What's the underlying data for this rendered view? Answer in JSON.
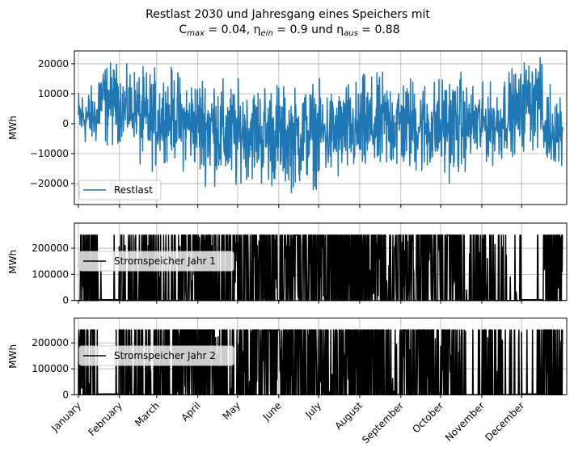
{
  "chart_data": {
    "type": "line",
    "title_line1": "Restlast 2030 und Jahresgang eines Speichers mit",
    "title_line2": {
      "c": "C",
      "c_sub": "max",
      "c_val": " = 0.04, ",
      "eta1": "η",
      "eta1_sub": "ein",
      "eta1_val": " = 0.9 und ",
      "eta2": "η",
      "eta2_sub": "aus",
      "eta2_val": " = 0.88"
    },
    "x_unit": "day of year",
    "xlim": [
      -3,
      368
    ],
    "months": [
      "January",
      "February",
      "March",
      "April",
      "May",
      "June",
      "July",
      "August",
      "September",
      "October",
      "November",
      "December"
    ],
    "month_start_days": [
      0,
      31,
      59,
      90,
      120,
      151,
      181,
      212,
      243,
      273,
      304,
      334
    ],
    "grid": true,
    "panels": [
      {
        "name": "Restlast",
        "legend": "Restlast",
        "legend_location": "lower-left",
        "ylabel": "MWh",
        "color": "#1f77b4",
        "ylim": [
          -27000,
          24300
        ],
        "yticks": [
          -20000,
          -10000,
          0,
          10000,
          20000
        ],
        "ytick_labels": [
          "−20000",
          "−10000",
          "0",
          "10000",
          "20000"
        ],
        "half_month_envelope": {
          "max": [
            13000,
            21000,
            20000,
            19000,
            19000,
            17000,
            19000,
            15000,
            14000,
            16000,
            13000,
            15000,
            13000,
            15000,
            17000,
            18000,
            17000,
            16000,
            18000,
            14000,
            14000,
            19000,
            22000,
            15000
          ],
          "min": [
            -8000,
            -9000,
            -6000,
            -16000,
            -13000,
            -16000,
            -21000,
            -25000,
            -20000,
            -22000,
            -23000,
            -22000,
            -21000,
            -20000,
            -20000,
            -18000,
            -18000,
            -19000,
            -20000,
            -16000,
            -14000,
            -11000,
            -10000,
            -14000
          ],
          "mean": [
            2000,
            9000,
            4000,
            1000,
            2000,
            0,
            -1000,
            -3000,
            -2000,
            -4000,
            -4000,
            -3000,
            -3000,
            -2000,
            -1000,
            0,
            0,
            -1000,
            0,
            0,
            0,
            3000,
            10000,
            -3000
          ]
        }
      },
      {
        "name": "Stromspeicher Jahr 1",
        "legend": "Stromspeicher Jahr 1",
        "legend_location": "center-left",
        "ylabel": "MWh",
        "color": "#000000",
        "ylim": [
          0,
          296000
        ],
        "yticks": [
          0,
          100000,
          200000
        ],
        "ytick_labels": [
          "0",
          "100000",
          "200000"
        ],
        "capacity": 250000,
        "half_month_activity": [
          0.7,
          0.05,
          0.3,
          0.4,
          0.5,
          0.8,
          0.8,
          0.6,
          0.8,
          0.9,
          0.9,
          0.8,
          0.9,
          0.8,
          0.8,
          0.6,
          0.8,
          0.8,
          0.7,
          0.3,
          0.6,
          0.2,
          0.05,
          0.8
        ]
      },
      {
        "name": "Stromspeicher Jahr 2",
        "legend": "Stromspeicher Jahr 2",
        "legend_location": "center-left",
        "ylabel": "MWh",
        "color": "#000000",
        "ylim": [
          0,
          296000
        ],
        "yticks": [
          0,
          100000,
          200000
        ],
        "ytick_labels": [
          "0",
          "100000",
          "200000"
        ],
        "capacity": 250000,
        "half_month_activity": [
          0.75,
          0.05,
          0.3,
          0.4,
          0.5,
          0.8,
          0.8,
          0.6,
          0.8,
          0.9,
          0.9,
          0.8,
          0.9,
          0.8,
          0.8,
          0.6,
          0.8,
          0.8,
          0.7,
          0.3,
          0.6,
          0.2,
          0.05,
          0.8
        ]
      }
    ]
  }
}
